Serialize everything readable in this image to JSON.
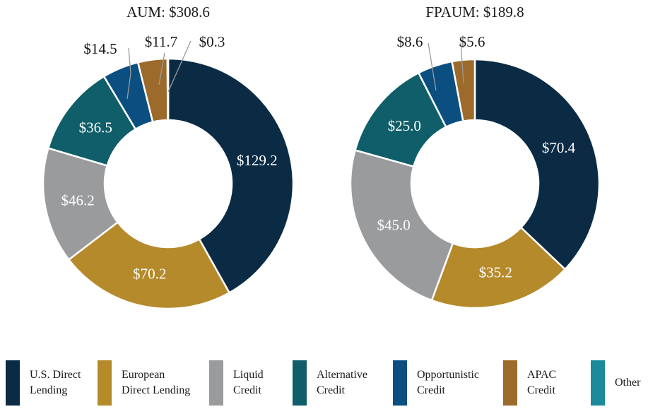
{
  "chart_data": [
    {
      "type": "pie",
      "variant": "donut",
      "title": "AUM: $308.6",
      "total": 308.6,
      "slices": [
        {
          "category": "U.S. Direct Lending",
          "value": 129.2,
          "label": "$129.2",
          "color": "#0b2b45"
        },
        {
          "category": "European Direct Lending",
          "value": 70.2,
          "label": "$70.2",
          "color": "#b58a2b"
        },
        {
          "category": "Liquid Credit",
          "value": 46.2,
          "label": "$46.2",
          "color": "#9a9b9d"
        },
        {
          "category": "Alternative Credit",
          "value": 36.5,
          "label": "$36.5",
          "color": "#0f5e69"
        },
        {
          "category": "Opportunistic Credit",
          "value": 14.5,
          "label": "$14.5",
          "color": "#0b4f80"
        },
        {
          "category": "APAC Credit",
          "value": 11.7,
          "label": "$11.7",
          "color": "#9c6a2a"
        },
        {
          "category": "Other",
          "value": 0.3,
          "label": "$0.3",
          "color": "#1b8a9a"
        }
      ]
    },
    {
      "type": "pie",
      "variant": "donut",
      "title": "FPAUM: $189.8",
      "total": 189.8,
      "slices": [
        {
          "category": "U.S. Direct Lending",
          "value": 70.4,
          "label": "$70.4",
          "color": "#0b2b45"
        },
        {
          "category": "European Direct Lending",
          "value": 35.2,
          "label": "$35.2",
          "color": "#b58a2b"
        },
        {
          "category": "Liquid Credit",
          "value": 45.0,
          "label": "$45.0",
          "color": "#9a9b9d"
        },
        {
          "category": "Alternative Credit",
          "value": 25.0,
          "label": "$25.0",
          "color": "#0f5e69"
        },
        {
          "category": "Opportunistic Credit",
          "value": 8.6,
          "label": "$8.6",
          "color": "#0b4f80"
        },
        {
          "category": "APAC Credit",
          "value": 5.6,
          "label": "$5.6",
          "color": "#9c6a2a"
        }
      ]
    }
  ],
  "legend": {
    "placement": "bottom",
    "items": [
      {
        "label": "U.S. Direct\nLending",
        "color": "#0b2b45"
      },
      {
        "label": "European\nDirect Lending",
        "color": "#b58a2b"
      },
      {
        "label": "Liquid\nCredit",
        "color": "#9a9b9d"
      },
      {
        "label": "Alternative\nCredit",
        "color": "#0f5e69"
      },
      {
        "label": "Opportunistic\nCredit",
        "color": "#0b4f80"
      },
      {
        "label": "APAC\nCredit",
        "color": "#9c6a2a"
      },
      {
        "label": "Other",
        "color": "#1b8a9a"
      }
    ]
  },
  "colors": {
    "slice_border": "#ffffff",
    "leader_line": "#9a9b9d",
    "label_on_slice": "#ffffff",
    "label_outside": "#1a1a1a"
  }
}
